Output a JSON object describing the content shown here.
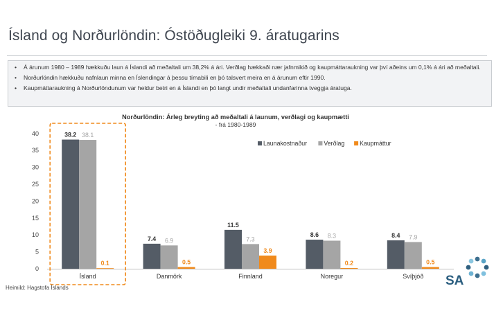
{
  "page": {
    "title": "Ísland og Norðurlöndin: Óstöðugleiki 9. áratugarins",
    "bullets": [
      "Á árunum 1980 – 1989 hækkuðu laun á Íslandi að meðaltali um 38,2% á ári. Verðlag hækkaði nær jafnmikið og kaupmáttaraukning var því aðeins um 0,1% á ári að meðaltali.",
      "Norðurlöndin hækkuðu nafnlaun minna en Íslendingar á þessu tímabili en þó talsvert meira en á árunum eftir 1990.",
      "Kaupmáttaraukning á Norðurlöndunum var heldur betri en á Íslandi en þó langt undir meðaltali undanfarinna tveggja áratuga."
    ],
    "source": "Heimild: Hagstofa Íslands",
    "logo_text": "SA"
  },
  "chart_data": {
    "type": "bar",
    "title": "Norðurlöndin: Árleg breyting að meðaltali á launum, verðlagi og kaupmætti",
    "subtitle": "- frá 1980-1989",
    "categories": [
      "Ísland",
      "Danmörk",
      "Finnland",
      "Noregur",
      "Svíþjóð"
    ],
    "series": [
      {
        "name": "Launakostnaður",
        "values": [
          38.2,
          7.4,
          11.5,
          8.6,
          8.4
        ],
        "color": "#545c66"
      },
      {
        "name": "Verðlag",
        "values": [
          38.1,
          6.9,
          7.3,
          8.3,
          7.9
        ],
        "color": "#a5a5a5"
      },
      {
        "name": "Kaupmáttur",
        "values": [
          0.1,
          0.5,
          3.9,
          0.2,
          0.5
        ],
        "color": "#f08a1c"
      }
    ],
    "y_ticks": [
      0,
      5,
      10,
      15,
      20,
      25,
      30,
      35,
      40
    ],
    "ylim": [
      0,
      42
    ],
    "legend_position": "top-right",
    "highlight_category": "Ísland",
    "grid": false
  }
}
